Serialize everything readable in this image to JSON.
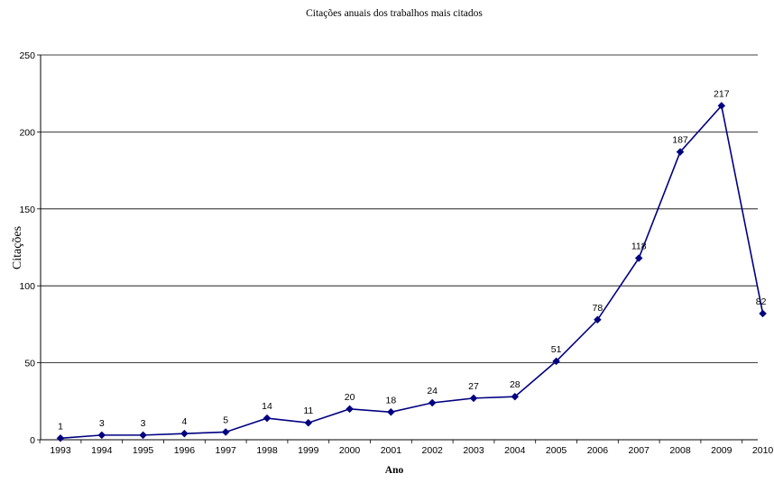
{
  "chart_data": {
    "type": "line",
    "title": "Citações anuais dos trabalhos mais citados",
    "xlabel": "Ano",
    "ylabel": "Citações",
    "categories": [
      "1993",
      "1994",
      "1995",
      "1996",
      "1997",
      "1998",
      "1999",
      "2000",
      "2001",
      "2002",
      "2003",
      "2004",
      "2005",
      "2006",
      "2007",
      "2008",
      "2009",
      "2010"
    ],
    "series": [
      {
        "values": [
          1,
          3,
          3,
          4,
          5,
          14,
          11,
          20,
          18,
          24,
          27,
          28,
          51,
          78,
          118,
          187,
          217,
          82
        ]
      }
    ],
    "ylim": [
      0,
      250
    ],
    "yticks": [
      0,
      50,
      100,
      150,
      200,
      250
    ],
    "grid": true,
    "legend": "none",
    "colors": {
      "line": "#000080",
      "marker": "#000080",
      "grid": "#000000"
    },
    "marker": "diamond"
  }
}
